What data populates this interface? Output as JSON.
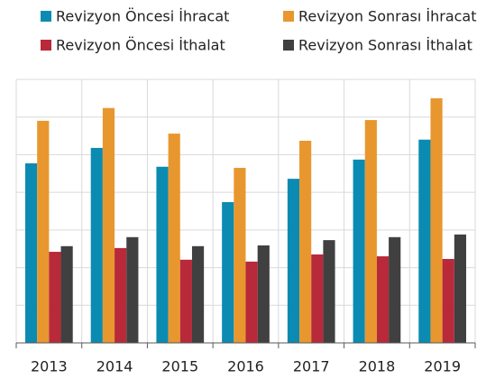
{
  "chart_data": {
    "type": "bar",
    "legend": "top",
    "grid": true,
    "categories": [
      "2013",
      "2014",
      "2015",
      "2016",
      "2017",
      "2018",
      "2019"
    ],
    "series": [
      {
        "name": "Revizyon Öncesi İhracat",
        "color": "#0b8bb1",
        "values": [
          4.77,
          5.18,
          4.68,
          3.74,
          4.36,
          4.87,
          5.4
        ]
      },
      {
        "name": "Revizyon Sonrası İhracat",
        "color": "#e8972f",
        "values": [
          5.9,
          6.24,
          5.56,
          4.65,
          5.37,
          5.92,
          6.5
        ]
      },
      {
        "name": "Revizyon Öncesi İthalat",
        "color": "#b8293a",
        "values": [
          2.42,
          2.52,
          2.21,
          2.16,
          2.35,
          2.3,
          2.23
        ]
      },
      {
        "name": "Revizyon Sonrası İthalat",
        "color": "#404040",
        "values": [
          2.57,
          2.81,
          2.57,
          2.59,
          2.73,
          2.81,
          2.88
        ]
      }
    ],
    "ylim": [
      0,
      7
    ],
    "yticks": [
      0,
      1,
      2,
      3,
      4,
      5,
      6,
      7
    ]
  }
}
